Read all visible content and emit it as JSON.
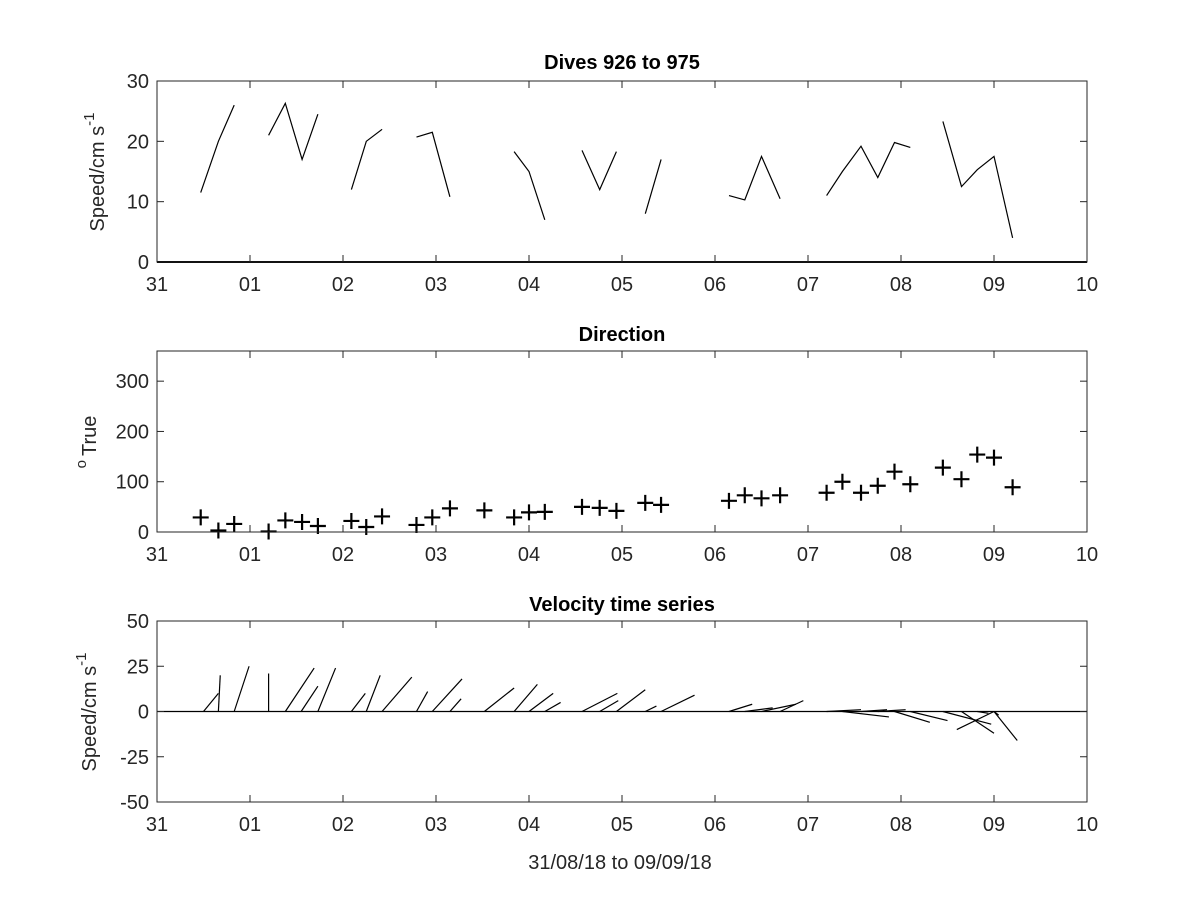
{
  "figure": {
    "x_ticks": [
      "31",
      "01",
      "02",
      "03",
      "04",
      "05",
      "06",
      "07",
      "08",
      "09",
      "10"
    ],
    "x_label": "31/08/18 to 09/09/18"
  },
  "chart_data": [
    {
      "type": "line",
      "title": "Dives 926 to 975",
      "ylabel": "Speed/cm s",
      "ylabel_superscript": "-1",
      "xlim": [
        0,
        10
      ],
      "ylim": [
        0,
        30
      ],
      "yticks": [
        "0",
        "10",
        "20",
        "30"
      ],
      "x_unit": "days since 31/08/18",
      "segments": [
        [
          [
            0.47,
            11.5
          ],
          [
            0.66,
            20
          ],
          [
            0.83,
            26
          ]
        ],
        [
          [
            1.2,
            21
          ],
          [
            1.38,
            26.3
          ],
          [
            1.56,
            17
          ],
          [
            1.73,
            24.5
          ]
        ],
        [
          [
            2.09,
            12
          ],
          [
            2.25,
            20
          ],
          [
            2.42,
            22
          ]
        ],
        [
          [
            2.79,
            20.7
          ],
          [
            2.96,
            21.5
          ],
          [
            3.15,
            10.8
          ]
        ],
        [
          [
            3.84,
            18.3
          ],
          [
            4.0,
            15
          ],
          [
            4.17,
            7
          ]
        ],
        [
          [
            4.57,
            18.5
          ],
          [
            4.76,
            12
          ],
          [
            4.94,
            18.3
          ]
        ],
        [
          [
            5.25,
            8
          ],
          [
            5.42,
            17
          ]
        ],
        [
          [
            6.15,
            11
          ],
          [
            6.32,
            10.3
          ],
          [
            6.5,
            17.5
          ],
          [
            6.7,
            10.5
          ]
        ],
        [
          [
            7.2,
            11
          ],
          [
            7.37,
            15
          ],
          [
            7.57,
            19.2
          ],
          [
            7.75,
            14
          ],
          [
            7.93,
            19.8
          ],
          [
            8.1,
            19
          ]
        ],
        [
          [
            8.45,
            23.3
          ],
          [
            8.65,
            12.5
          ],
          [
            8.82,
            15.3
          ],
          [
            9.0,
            17.5
          ],
          [
            9.2,
            4
          ]
        ]
      ]
    },
    {
      "type": "scatter",
      "title": "Direction",
      "ylabel": "True",
      "ylabel_prefix": "o",
      "xlim": [
        0,
        10
      ],
      "ylim": [
        0,
        360
      ],
      "yticks": [
        "0",
        "100",
        "200",
        "300"
      ],
      "marker": "+",
      "x": [
        0.47,
        0.66,
        0.83,
        1.2,
        1.38,
        1.56,
        1.73,
        2.09,
        2.25,
        2.42,
        2.79,
        2.96,
        3.15,
        3.52,
        3.84,
        4.0,
        4.17,
        4.57,
        4.76,
        4.94,
        5.25,
        5.42,
        6.15,
        6.32,
        6.5,
        6.7,
        7.2,
        7.37,
        7.57,
        7.75,
        7.93,
        8.1,
        8.45,
        8.65,
        8.82,
        9.0,
        9.2
      ],
      "y": [
        29,
        3,
        16,
        1,
        23,
        20,
        12,
        22,
        10,
        31,
        14,
        29,
        47,
        43,
        29,
        39,
        40,
        50,
        48,
        42,
        58,
        54,
        62,
        73,
        67,
        73,
        78,
        100,
        78,
        92,
        120,
        95,
        128,
        105,
        154,
        148,
        89
      ]
    },
    {
      "type": "stick",
      "title": "Velocity time series",
      "ylabel": "Speed/cm s",
      "ylabel_superscript": "-1",
      "xlim": [
        0,
        10
      ],
      "ylim": [
        -50,
        50
      ],
      "yticks": [
        "-50",
        "-25",
        "0",
        "25",
        "50"
      ],
      "baseline": 0,
      "sticks": [
        {
          "x": 0.5,
          "dx": 0.16,
          "dy": 10
        },
        {
          "x": 0.66,
          "dx": 0.02,
          "dy": 20
        },
        {
          "x": 0.83,
          "dx": 0.16,
          "dy": 25
        },
        {
          "x": 1.2,
          "dx": 0.0,
          "dy": 21
        },
        {
          "x": 1.38,
          "dx": 0.31,
          "dy": 24
        },
        {
          "x": 1.55,
          "dx": 0.18,
          "dy": 14
        },
        {
          "x": 1.73,
          "dx": 0.19,
          "dy": 24
        },
        {
          "x": 2.09,
          "dx": 0.15,
          "dy": 10
        },
        {
          "x": 2.25,
          "dx": 0.15,
          "dy": 20
        },
        {
          "x": 2.42,
          "dx": 0.32,
          "dy": 19
        },
        {
          "x": 2.79,
          "dx": 0.12,
          "dy": 11
        },
        {
          "x": 2.96,
          "dx": 0.32,
          "dy": 18
        },
        {
          "x": 3.15,
          "dx": 0.12,
          "dy": 7
        },
        {
          "x": 3.52,
          "dx": 0.32,
          "dy": 13
        },
        {
          "x": 3.84,
          "dx": 0.25,
          "dy": 15
        },
        {
          "x": 4.0,
          "dx": 0.26,
          "dy": 10
        },
        {
          "x": 4.17,
          "dx": 0.17,
          "dy": 5
        },
        {
          "x": 4.57,
          "dx": 0.38,
          "dy": 10
        },
        {
          "x": 4.76,
          "dx": 0.2,
          "dy": 6
        },
        {
          "x": 4.94,
          "dx": 0.31,
          "dy": 12
        },
        {
          "x": 5.25,
          "dx": 0.12,
          "dy": 3
        },
        {
          "x": 5.42,
          "dx": 0.36,
          "dy": 9
        },
        {
          "x": 6.15,
          "dx": 0.25,
          "dy": 4
        },
        {
          "x": 6.32,
          "dx": 0.3,
          "dy": 2
        },
        {
          "x": 6.5,
          "dx": 0.37,
          "dy": 4
        },
        {
          "x": 6.7,
          "dx": 0.25,
          "dy": 6
        },
        {
          "x": 7.2,
          "dx": 0.37,
          "dy": 1
        },
        {
          "x": 7.37,
          "dx": 0.5,
          "dy": -3
        },
        {
          "x": 7.57,
          "dx": 0.28,
          "dy": 1
        },
        {
          "x": 7.75,
          "dx": 0.3,
          "dy": 1
        },
        {
          "x": 7.93,
          "dx": 0.38,
          "dy": -6
        },
        {
          "x": 8.1,
          "dx": 0.4,
          "dy": -5
        },
        {
          "x": 8.45,
          "dx": 0.52,
          "dy": -7
        },
        {
          "x": 8.65,
          "dx": 0.35,
          "dy": -12
        },
        {
          "x": 8.82,
          "dx": 0.12,
          "dy": -1
        },
        {
          "x": 9.0,
          "dx": 0.05,
          "dy": -2
        },
        {
          "x": 9.0,
          "dx": -0.4,
          "dy": -10
        },
        {
          "x": 9.0,
          "dx": 0.25,
          "dy": -16
        }
      ]
    }
  ]
}
